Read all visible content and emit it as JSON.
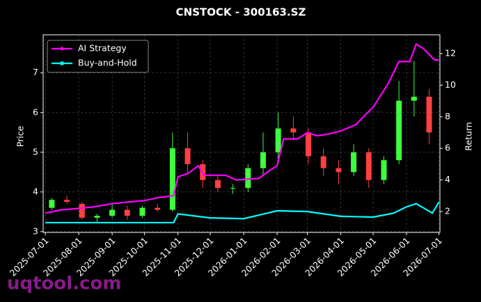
{
  "chart_data": {
    "type": "candlestick-returns",
    "title": "CNSTOCK - 300163.SZ",
    "ylabel": "Price",
    "y2label": "Return",
    "watermark": "uqtool.com",
    "xlim": [
      "2025-06-29",
      "2026-07-02"
    ],
    "xticks": [
      "2025-07-01",
      "2025-08-01",
      "2025-09-01",
      "2025-10-01",
      "2025-11-01",
      "2025-12-01",
      "2026-01-01",
      "2026-02-01",
      "2026-03-01",
      "2026-04-01",
      "2026-05-01",
      "2026-06-01",
      "2026-07-01"
    ],
    "ylim": [
      2.98,
      7.96
    ],
    "yticks": [
      3,
      4,
      5,
      6,
      7
    ],
    "y2lim": [
      0.68,
      13.19
    ],
    "y2ticks": [
      2,
      4,
      6,
      8,
      10,
      12
    ],
    "grid": true,
    "legend": "upper left",
    "up_color": "#3dff3d",
    "down_color": "#ff4040",
    "candles": {
      "x": [
        "2025-07-07",
        "2025-07-21",
        "2025-08-04",
        "2025-08-18",
        "2025-09-01",
        "2025-09-15",
        "2025-09-29",
        "2025-10-13",
        "2025-10-27",
        "2025-11-10",
        "2025-11-24",
        "2025-12-08",
        "2025-12-22",
        "2026-01-05",
        "2026-01-19",
        "2026-02-02",
        "2026-02-16",
        "2026-03-02",
        "2026-03-16",
        "2026-03-30",
        "2026-04-13",
        "2026-04-27",
        "2026-05-11",
        "2026-05-25",
        "2026-06-08",
        "2026-06-22"
      ],
      "open": [
        3.6,
        3.8,
        3.7,
        3.35,
        3.4,
        3.55,
        3.4,
        3.6,
        3.55,
        5.1,
        4.7,
        4.3,
        4.1,
        4.1,
        4.6,
        5.0,
        5.6,
        5.5,
        4.9,
        4.6,
        4.5,
        5.0,
        4.3,
        4.8,
        6.3,
        6.4
      ],
      "high": [
        3.85,
        3.9,
        3.75,
        3.45,
        3.7,
        3.65,
        3.65,
        3.7,
        5.5,
        5.5,
        4.8,
        4.4,
        4.2,
        4.7,
        5.5,
        6.0,
        5.9,
        5.6,
        5.1,
        4.8,
        5.2,
        5.1,
        4.9,
        6.8,
        7.3,
        6.6
      ],
      "low": [
        3.55,
        3.7,
        3.3,
        3.25,
        3.35,
        3.3,
        3.35,
        3.5,
        3.5,
        4.5,
        4.1,
        4.0,
        3.95,
        4.0,
        4.4,
        4.8,
        5.3,
        4.7,
        4.4,
        4.2,
        4.4,
        4.1,
        4.2,
        4.7,
        5.9,
        5.2
      ],
      "close": [
        3.8,
        3.75,
        3.35,
        3.4,
        3.55,
        3.4,
        3.6,
        3.55,
        5.1,
        4.7,
        4.3,
        4.1,
        4.1,
        4.6,
        5.0,
        5.6,
        5.5,
        4.9,
        4.6,
        4.5,
        5.0,
        4.3,
        4.8,
        6.3,
        6.4,
        5.5
      ]
    },
    "series": [
      {
        "name": "AI Strategy",
        "color": "#ff00ff",
        "axis": "y2",
        "x": [
          "2025-07-01",
          "2025-07-15",
          "2025-08-01",
          "2025-08-15",
          "2025-09-01",
          "2025-09-15",
          "2025-10-01",
          "2025-10-15",
          "2025-10-28",
          "2025-11-01",
          "2025-11-10",
          "2025-11-20",
          "2025-11-25",
          "2025-12-15",
          "2025-12-25",
          "2026-01-15",
          "2026-01-25",
          "2026-02-01",
          "2026-02-07",
          "2026-02-20",
          "2026-03-01",
          "2026-03-10",
          "2026-03-20",
          "2026-04-01",
          "2026-04-15",
          "2026-04-25",
          "2026-05-01",
          "2026-05-15",
          "2026-05-25",
          "2026-06-04",
          "2026-06-10",
          "2026-06-17",
          "2026-06-27",
          "2026-07-01"
        ],
        "values": [
          1.9,
          2.1,
          2.2,
          2.3,
          2.5,
          2.6,
          2.7,
          2.9,
          3.0,
          4.2,
          4.4,
          4.9,
          4.3,
          4.3,
          4.0,
          4.1,
          4.6,
          4.9,
          6.6,
          6.6,
          7.0,
          6.8,
          6.9,
          7.1,
          7.5,
          8.2,
          8.6,
          10.1,
          11.5,
          11.5,
          12.6,
          12.3,
          11.6,
          11.6
        ]
      },
      {
        "name": "Buy-and-Hold",
        "color": "#00ffff",
        "axis": "y2",
        "x": [
          "2025-07-01",
          "2025-08-01",
          "2025-09-01",
          "2025-10-01",
          "2025-10-28",
          "2025-11-01",
          "2025-12-01",
          "2026-01-01",
          "2026-02-01",
          "2026-03-01",
          "2026-04-01",
          "2026-05-01",
          "2026-05-20",
          "2026-06-01",
          "2026-06-10",
          "2026-06-25",
          "2026-07-01"
        ],
        "values": [
          1.3,
          1.3,
          1.3,
          1.3,
          1.3,
          1.85,
          1.6,
          1.55,
          2.05,
          2.0,
          1.7,
          1.65,
          1.9,
          2.3,
          2.5,
          1.9,
          2.6
        ]
      }
    ]
  }
}
